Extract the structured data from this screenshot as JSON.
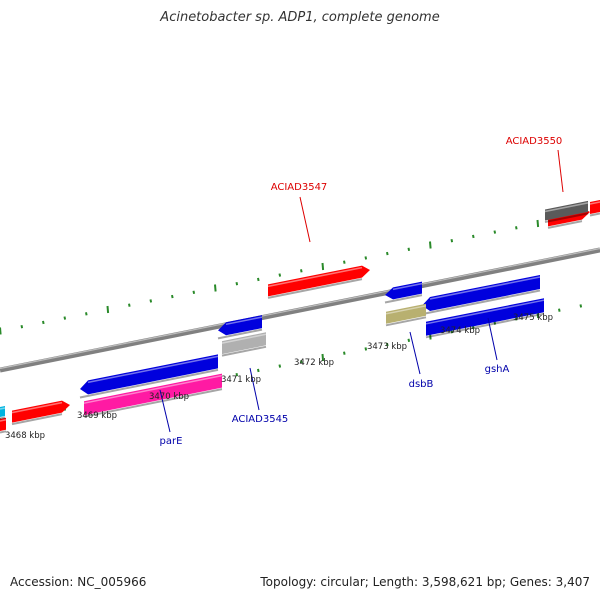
{
  "title": "Acinetobacter sp. ADP1, complete genome",
  "footer": {
    "accession": "Accession: NC_005966",
    "summary": "Topology: circular; Length: 3,598,621 bp; Genes: 3,407"
  },
  "colors": {
    "red_gene": "#ff0000",
    "blue_gene": "#0000dd",
    "pink_gene": "#ff1aa3",
    "gray_gene": "#b0b0b0",
    "olive_gene": "#b8b070",
    "dark_gene": "#5a5a5a",
    "cyan_gene": "#00b4e0",
    "backbone": "#808080",
    "ticks": "#2a8a2a",
    "red_label": "#dd0000",
    "blue_label": "#0000aa"
  },
  "kbp_labels": [
    "3468 kbp",
    "3469 kbp",
    "3470 kbp",
    "3471 kbp",
    "3472 kbp",
    "3473 kbp",
    "3474 kbp",
    "3475 kbp"
  ],
  "gene_labels": [
    {
      "text": "ACIAD3550",
      "color": "red"
    },
    {
      "text": "ACIAD3547",
      "color": "red"
    },
    {
      "text": "ACIAD3545",
      "color": "blue"
    },
    {
      "text": "parE",
      "color": "blue"
    },
    {
      "text": "dsbB",
      "color": "blue"
    },
    {
      "text": "gshA",
      "color": "blue"
    }
  ]
}
